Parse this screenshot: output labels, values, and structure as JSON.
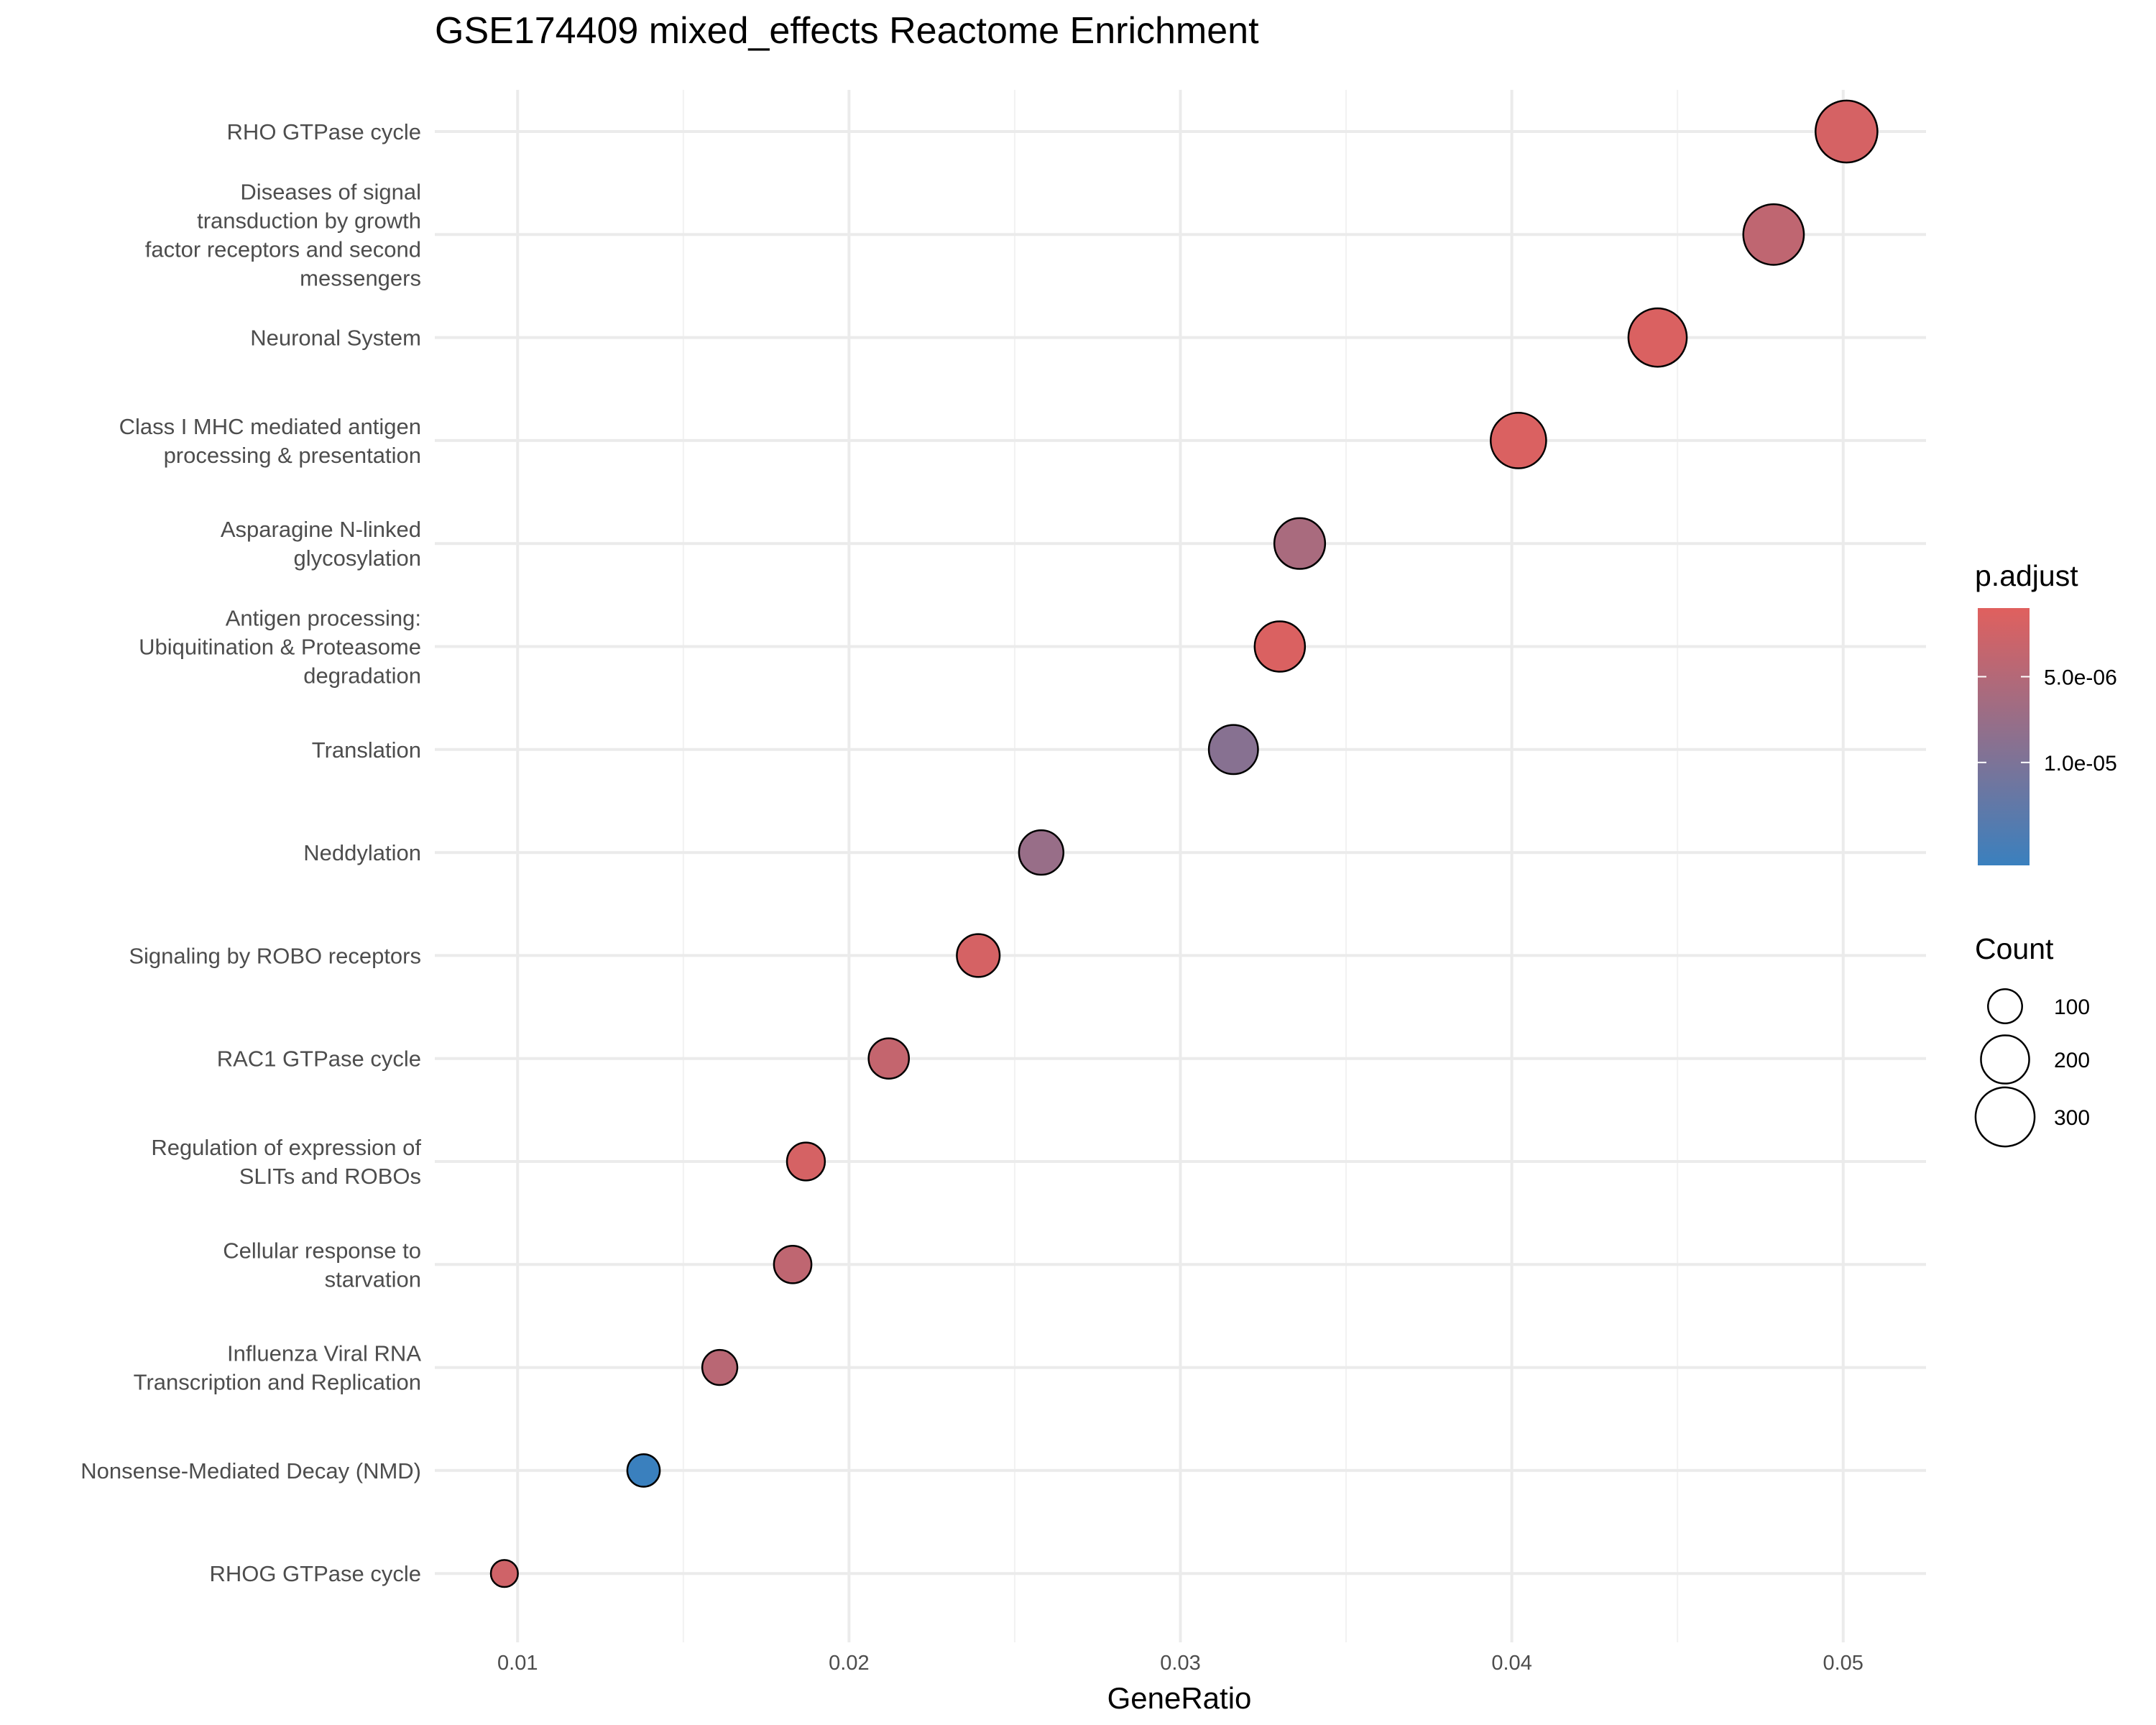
{
  "chart_data": {
    "type": "scatter",
    "title": "GSE174409 mixed_effects Reactome Enrichment",
    "xlabel": "GeneRatio",
    "ylabel": "",
    "xlim": [
      0.0075,
      0.0525
    ],
    "x_ticks": [
      "0.01",
      "0.02",
      "0.03",
      "0.04",
      "0.05"
    ],
    "x_tick_values": [
      0.01,
      0.02,
      0.03,
      0.04,
      0.05
    ],
    "grid": true,
    "legend_position": "right",
    "color_legend": {
      "title": "p.adjust",
      "low_color": "#E0605E",
      "high_color": "#3A80BE",
      "range": [
        1e-06,
        1.6e-05
      ],
      "labels": [
        "5.0e-06",
        "1.0e-05"
      ],
      "label_values": [
        5e-06,
        1e-05
      ]
    },
    "size_legend": {
      "title": "Count",
      "labels": [
        "100",
        "200",
        "300"
      ],
      "values": [
        100,
        200,
        300
      ]
    },
    "points": [
      {
        "term": "RHO GTPase cycle",
        "x": 0.0501,
        "count": 330,
        "p_adjust": 2e-06
      },
      {
        "term": "Diseases of signal\ntransduction by growth\nfactor receptors and second\nmessengers",
        "x": 0.0479,
        "count": 316,
        "p_adjust": 4e-06
      },
      {
        "term": "Neuronal System",
        "x": 0.0444,
        "count": 293,
        "p_adjust": 1.5e-06
      },
      {
        "term": "Class I MHC mediated antigen\nprocessing & presentation",
        "x": 0.0402,
        "count": 265,
        "p_adjust": 1.5e-06
      },
      {
        "term": "Asparagine N-linked\nglycosylation",
        "x": 0.0336,
        "count": 222,
        "p_adjust": 6e-06
      },
      {
        "term": "Antigen processing:\nUbiquitination & Proteasome\ndegradation",
        "x": 0.033,
        "count": 218,
        "p_adjust": 1.5e-06
      },
      {
        "term": "Translation",
        "x": 0.0316,
        "count": 208,
        "p_adjust": 9e-06
      },
      {
        "term": "Neddylation",
        "x": 0.0258,
        "count": 170,
        "p_adjust": 7.5e-06
      },
      {
        "term": "Signaling by ROBO receptors",
        "x": 0.0239,
        "count": 158,
        "p_adjust": 2e-06
      },
      {
        "term": "RAC1 GTPase cycle",
        "x": 0.0212,
        "count": 140,
        "p_adjust": 3.5e-06
      },
      {
        "term": "Regulation of expression of\nSLITs and ROBOs",
        "x": 0.0187,
        "count": 124,
        "p_adjust": 2e-06
      },
      {
        "term": "Cellular response to\nstarvation",
        "x": 0.0183,
        "count": 121,
        "p_adjust": 4e-06
      },
      {
        "term": "Influenza Viral RNA\nTranscription and Replication",
        "x": 0.0161,
        "count": 106,
        "p_adjust": 4.5e-06
      },
      {
        "term": "Nonsense-Mediated Decay (NMD)",
        "x": 0.0138,
        "count": 91,
        "p_adjust": 1.6e-05
      },
      {
        "term": "RHOG GTPase cycle",
        "x": 0.0096,
        "count": 63,
        "p_adjust": 2.5e-06
      }
    ]
  }
}
